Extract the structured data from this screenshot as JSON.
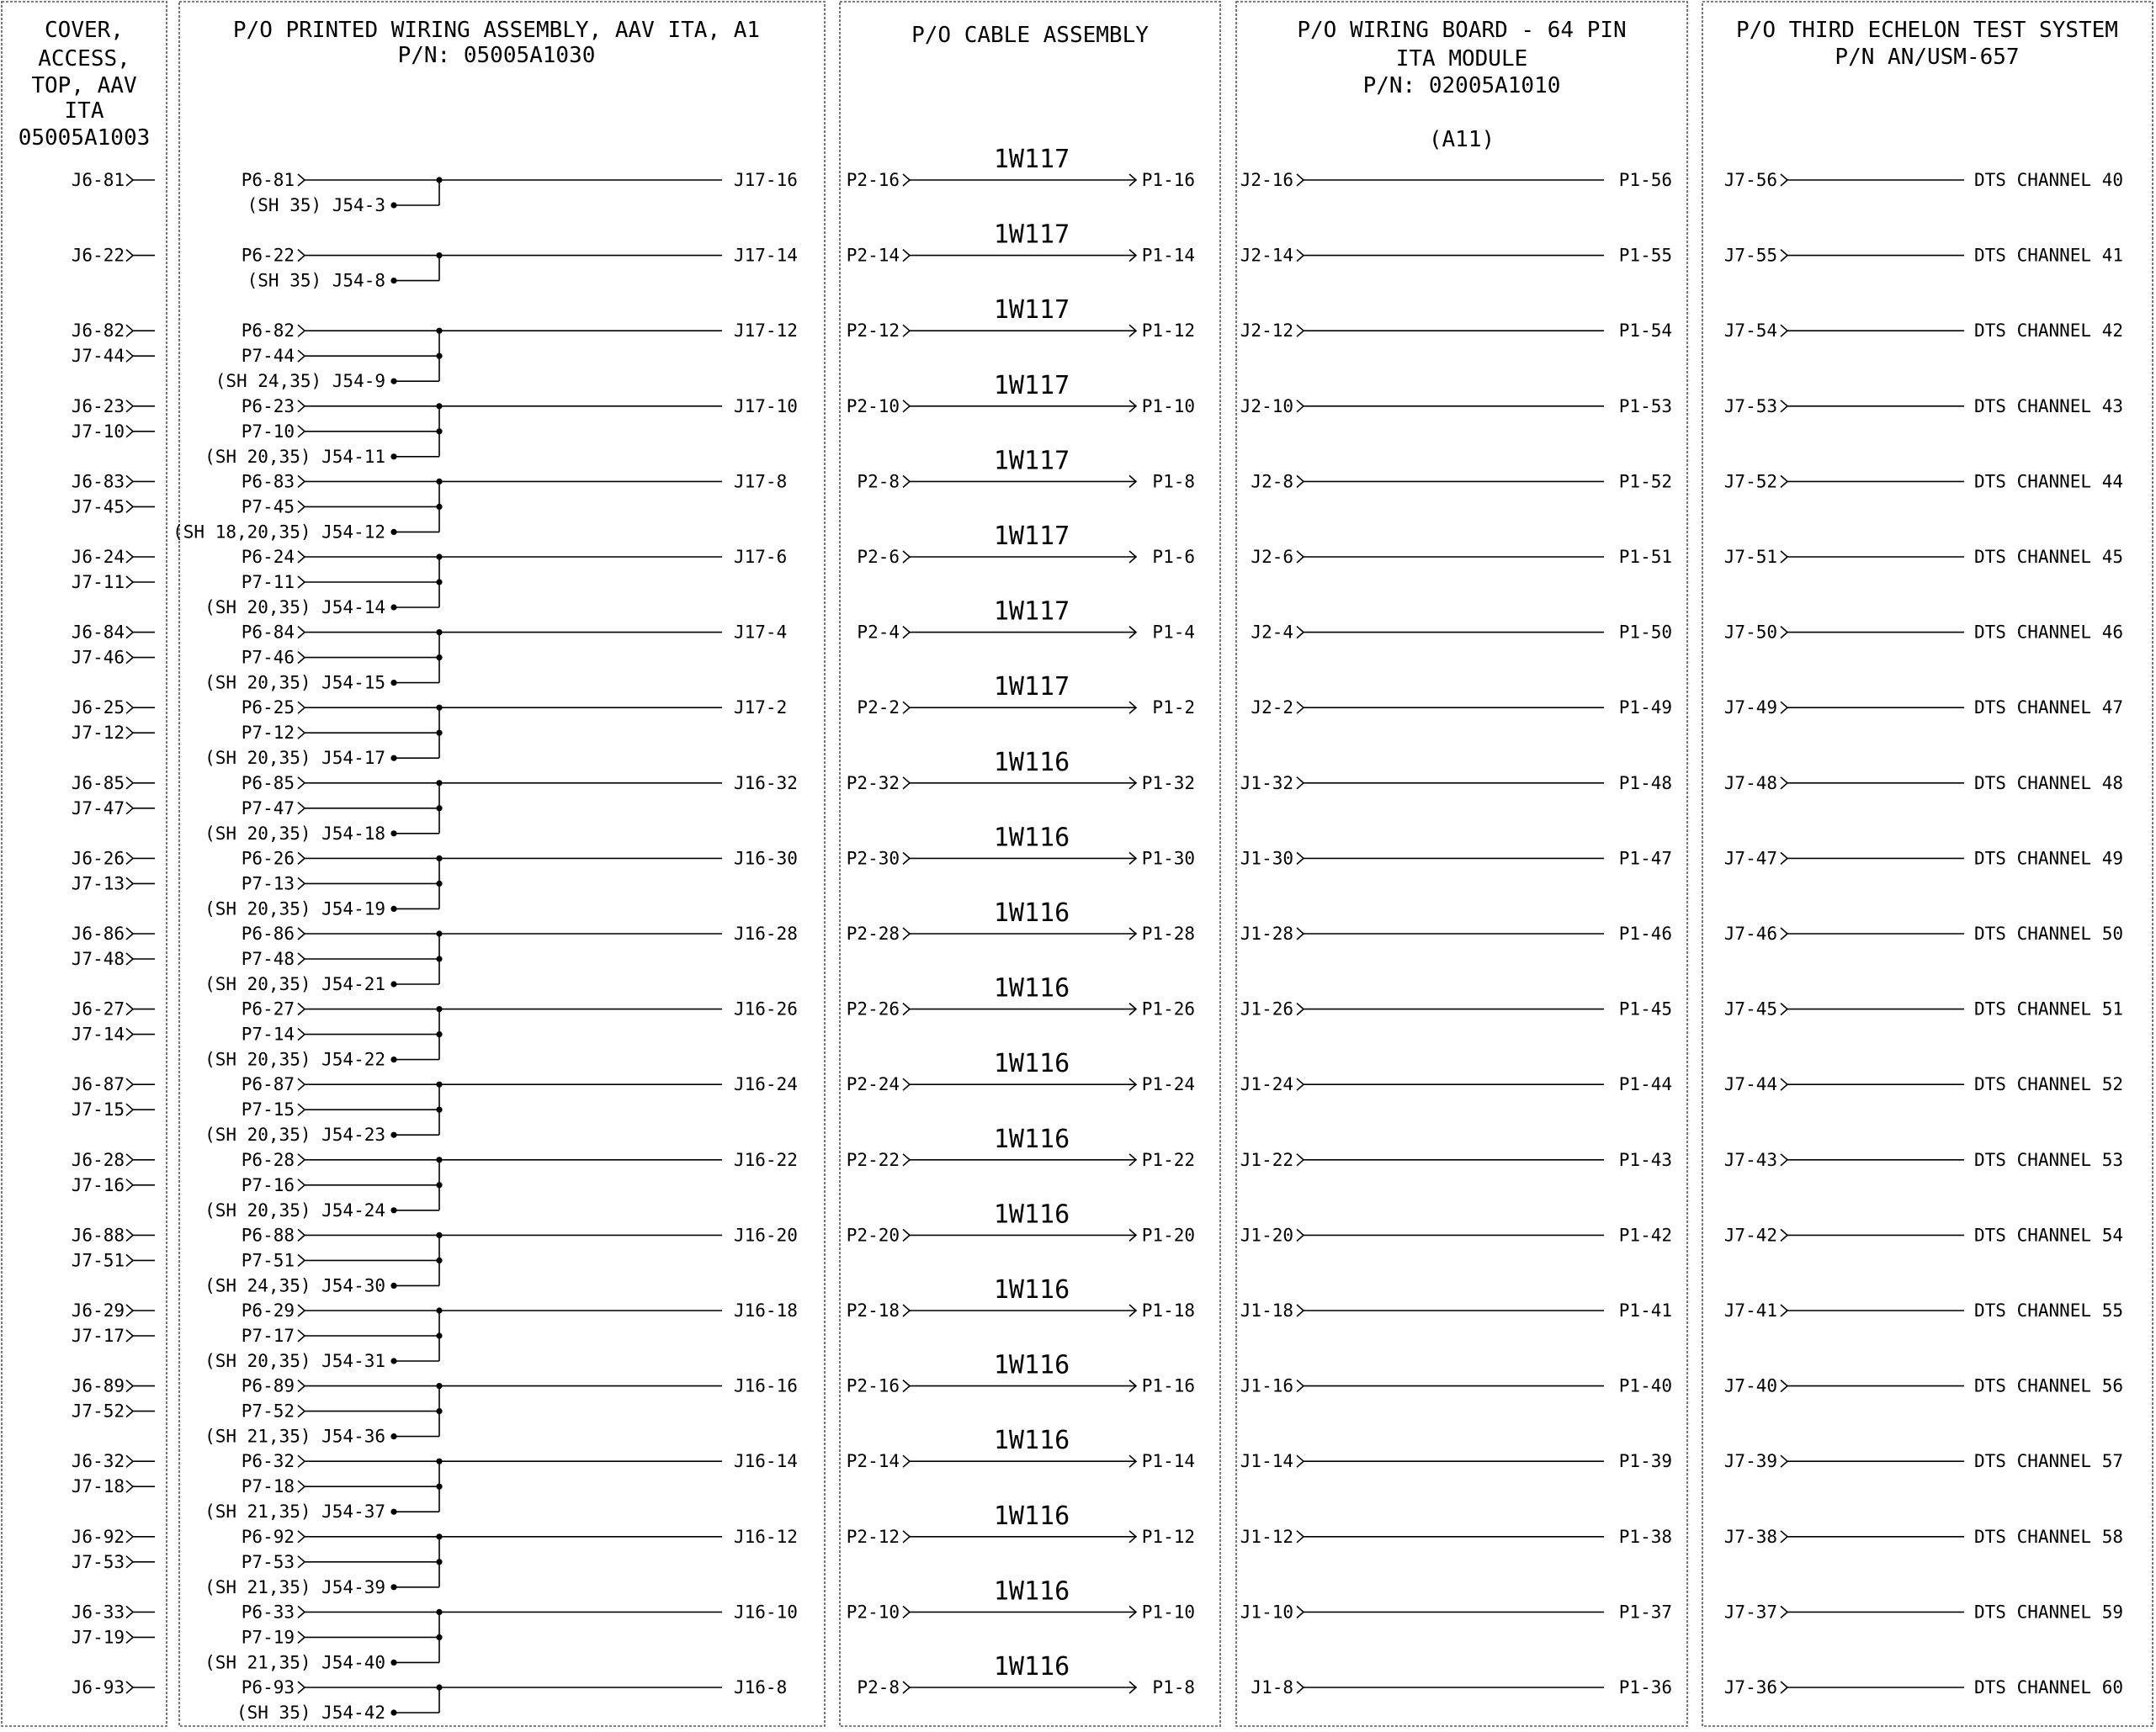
{
  "panels": {
    "cover": {
      "title_lines": [
        "COVER,",
        "ACCESS,",
        "TOP, AAV",
        "ITA",
        "05005A1003"
      ],
      "rows": [
        [
          "J6-81"
        ],
        [
          "J6-22"
        ],
        [
          "J6-82",
          "J7-44"
        ],
        [
          "J6-23",
          "J7-10"
        ],
        [
          "J6-83",
          "J7-45"
        ],
        [
          "J6-24",
          "J7-11"
        ],
        [
          "J6-84",
          "J7-46"
        ],
        [
          "J6-25",
          "J7-12"
        ],
        [
          "J6-85",
          "J7-47"
        ],
        [
          "J6-26",
          "J7-13"
        ],
        [
          "J6-86",
          "J7-48"
        ],
        [
          "J6-27",
          "J7-14"
        ],
        [
          "J6-87",
          "J7-15"
        ],
        [
          "J6-28",
          "J7-16"
        ],
        [
          "J6-88",
          "J7-51"
        ],
        [
          "J6-29",
          "J7-17"
        ],
        [
          "J6-89",
          "J7-52"
        ],
        [
          "J6-32",
          "J7-18"
        ],
        [
          "J6-92",
          "J7-53"
        ],
        [
          "J6-33",
          "J7-19"
        ],
        [
          "J6-93"
        ]
      ]
    },
    "pwa": {
      "title_lines": [
        "P/O PRINTED WIRING ASSEMBLY, AAV ITA, A1",
        "P/N: 05005A1030"
      ],
      "rows": [
        {
          "p": [
            "P6-81"
          ],
          "ref": "(SH 35) J54-3",
          "out": "J17-16"
        },
        {
          "p": [
            "P6-22"
          ],
          "ref": "(SH 35) J54-8",
          "out": "J17-14"
        },
        {
          "p": [
            "P6-82",
            "P7-44"
          ],
          "ref": "(SH 24,35) J54-9",
          "out": "J17-12"
        },
        {
          "p": [
            "P6-23",
            "P7-10"
          ],
          "ref": "(SH 20,35) J54-11",
          "out": "J17-10"
        },
        {
          "p": [
            "P6-83",
            "P7-45"
          ],
          "ref": "(SH 18,20,35) J54-12",
          "out": "J17-8"
        },
        {
          "p": [
            "P6-24",
            "P7-11"
          ],
          "ref": "(SH 20,35) J54-14",
          "out": "J17-6"
        },
        {
          "p": [
            "P6-84",
            "P7-46"
          ],
          "ref": "(SH 20,35) J54-15",
          "out": "J17-4"
        },
        {
          "p": [
            "P6-25",
            "P7-12"
          ],
          "ref": "(SH 20,35) J54-17",
          "out": "J17-2"
        },
        {
          "p": [
            "P6-85",
            "P7-47"
          ],
          "ref": "(SH 20,35) J54-18",
          "out": "J16-32"
        },
        {
          "p": [
            "P6-26",
            "P7-13"
          ],
          "ref": "(SH 20,35) J54-19",
          "out": "J16-30"
        },
        {
          "p": [
            "P6-86",
            "P7-48"
          ],
          "ref": "(SH 20,35) J54-21",
          "out": "J16-28"
        },
        {
          "p": [
            "P6-27",
            "P7-14"
          ],
          "ref": "(SH 20,35) J54-22",
          "out": "J16-26"
        },
        {
          "p": [
            "P6-87",
            "P7-15"
          ],
          "ref": "(SH 20,35) J54-23",
          "out": "J16-24"
        },
        {
          "p": [
            "P6-28",
            "P7-16"
          ],
          "ref": "(SH 20,35) J54-24",
          "out": "J16-22"
        },
        {
          "p": [
            "P6-88",
            "P7-51"
          ],
          "ref": "(SH 24,35) J54-30",
          "out": "J16-20"
        },
        {
          "p": [
            "P6-29",
            "P7-17"
          ],
          "ref": "(SH 20,35) J54-31",
          "out": "J16-18"
        },
        {
          "p": [
            "P6-89",
            "P7-52"
          ],
          "ref": "(SH 21,35) J54-36",
          "out": "J16-16"
        },
        {
          "p": [
            "P6-32",
            "P7-18"
          ],
          "ref": "(SH 21,35) J54-37",
          "out": "J16-14"
        },
        {
          "p": [
            "P6-92",
            "P7-53"
          ],
          "ref": "(SH 21,35) J54-39",
          "out": "J16-12"
        },
        {
          "p": [
            "P6-33",
            "P7-19"
          ],
          "ref": "(SH 21,35) J54-40",
          "out": "J16-10"
        },
        {
          "p": [
            "P6-93"
          ],
          "ref": "(SH 35) J54-42",
          "out": "J16-8"
        }
      ]
    },
    "cable": {
      "title_lines": [
        "P/O CABLE ASSEMBLY"
      ],
      "rows": [
        {
          "in": "P2-16",
          "cable": "1W117",
          "out": "P1-16"
        },
        {
          "in": "P2-14",
          "cable": "1W117",
          "out": "P1-14"
        },
        {
          "in": "P2-12",
          "cable": "1W117",
          "out": "P1-12"
        },
        {
          "in": "P2-10",
          "cable": "1W117",
          "out": "P1-10"
        },
        {
          "in": "P2-8",
          "cable": "1W117",
          "out": "P1-8"
        },
        {
          "in": "P2-6",
          "cable": "1W117",
          "out": "P1-6"
        },
        {
          "in": "P2-4",
          "cable": "1W117",
          "out": "P1-4"
        },
        {
          "in": "P2-2",
          "cable": "1W117",
          "out": "P1-2"
        },
        {
          "in": "P2-32",
          "cable": "1W116",
          "out": "P1-32"
        },
        {
          "in": "P2-30",
          "cable": "1W116",
          "out": "P1-30"
        },
        {
          "in": "P2-28",
          "cable": "1W116",
          "out": "P1-28"
        },
        {
          "in": "P2-26",
          "cable": "1W116",
          "out": "P1-26"
        },
        {
          "in": "P2-24",
          "cable": "1W116",
          "out": "P1-24"
        },
        {
          "in": "P2-22",
          "cable": "1W116",
          "out": "P1-22"
        },
        {
          "in": "P2-20",
          "cable": "1W116",
          "out": "P1-20"
        },
        {
          "in": "P2-18",
          "cable": "1W116",
          "out": "P1-18"
        },
        {
          "in": "P2-16",
          "cable": "1W116",
          "out": "P1-16"
        },
        {
          "in": "P2-14",
          "cable": "1W116",
          "out": "P1-14"
        },
        {
          "in": "P2-12",
          "cable": "1W116",
          "out": "P1-12"
        },
        {
          "in": "P2-10",
          "cable": "1W116",
          "out": "P1-10"
        },
        {
          "in": "P2-8",
          "cable": "1W116",
          "out": "P1-8"
        }
      ]
    },
    "wiring": {
      "title_lines": [
        "P/O WIRING BOARD - 64 PIN",
        "ITA MODULE",
        "P/N: 02005A1010",
        "(A11)"
      ],
      "rows": [
        {
          "in": "J2-16",
          "out": "P1-56"
        },
        {
          "in": "J2-14",
          "out": "P1-55"
        },
        {
          "in": "J2-12",
          "out": "P1-54"
        },
        {
          "in": "J2-10",
          "out": "P1-53"
        },
        {
          "in": "J2-8",
          "out": "P1-52"
        },
        {
          "in": "J2-6",
          "out": "P1-51"
        },
        {
          "in": "J2-4",
          "out": "P1-50"
        },
        {
          "in": "J2-2",
          "out": "P1-49"
        },
        {
          "in": "J1-32",
          "out": "P1-48"
        },
        {
          "in": "J1-30",
          "out": "P1-47"
        },
        {
          "in": "J1-28",
          "out": "P1-46"
        },
        {
          "in": "J1-26",
          "out": "P1-45"
        },
        {
          "in": "J1-24",
          "out": "P1-44"
        },
        {
          "in": "J1-22",
          "out": "P1-43"
        },
        {
          "in": "J1-20",
          "out": "P1-42"
        },
        {
          "in": "J1-18",
          "out": "P1-41"
        },
        {
          "in": "J1-16",
          "out": "P1-40"
        },
        {
          "in": "J1-14",
          "out": "P1-39"
        },
        {
          "in": "J1-12",
          "out": "P1-38"
        },
        {
          "in": "J1-10",
          "out": "P1-37"
        },
        {
          "in": "J1-8",
          "out": "P1-36"
        }
      ]
    },
    "test": {
      "title_lines": [
        "P/O THIRD ECHELON TEST SYSTEM",
        "P/N AN/USM-657"
      ],
      "rows": [
        {
          "in": "J7-56",
          "out": "DTS CHANNEL 40"
        },
        {
          "in": "J7-55",
          "out": "DTS CHANNEL 41"
        },
        {
          "in": "J7-54",
          "out": "DTS CHANNEL 42"
        },
        {
          "in": "J7-53",
          "out": "DTS CHANNEL 43"
        },
        {
          "in": "J7-52",
          "out": "DTS CHANNEL 44"
        },
        {
          "in": "J7-51",
          "out": "DTS CHANNEL 45"
        },
        {
          "in": "J7-50",
          "out": "DTS CHANNEL 46"
        },
        {
          "in": "J7-49",
          "out": "DTS CHANNEL 47"
        },
        {
          "in": "J7-48",
          "out": "DTS CHANNEL 48"
        },
        {
          "in": "J7-47",
          "out": "DTS CHANNEL 49"
        },
        {
          "in": "J7-46",
          "out": "DTS CHANNEL 50"
        },
        {
          "in": "J7-45",
          "out": "DTS CHANNEL 51"
        },
        {
          "in": "J7-44",
          "out": "DTS CHANNEL 52"
        },
        {
          "in": "J7-43",
          "out": "DTS CHANNEL 53"
        },
        {
          "in": "J7-42",
          "out": "DTS CHANNEL 54"
        },
        {
          "in": "J7-41",
          "out": "DTS CHANNEL 55"
        },
        {
          "in": "J7-40",
          "out": "DTS CHANNEL 56"
        },
        {
          "in": "J7-39",
          "out": "DTS CHANNEL 57"
        },
        {
          "in": "J7-38",
          "out": "DTS CHANNEL 58"
        },
        {
          "in": "J7-37",
          "out": "DTS CHANNEL 59"
        },
        {
          "in": "J7-36",
          "out": "DTS CHANNEL 60"
        }
      ]
    }
  }
}
